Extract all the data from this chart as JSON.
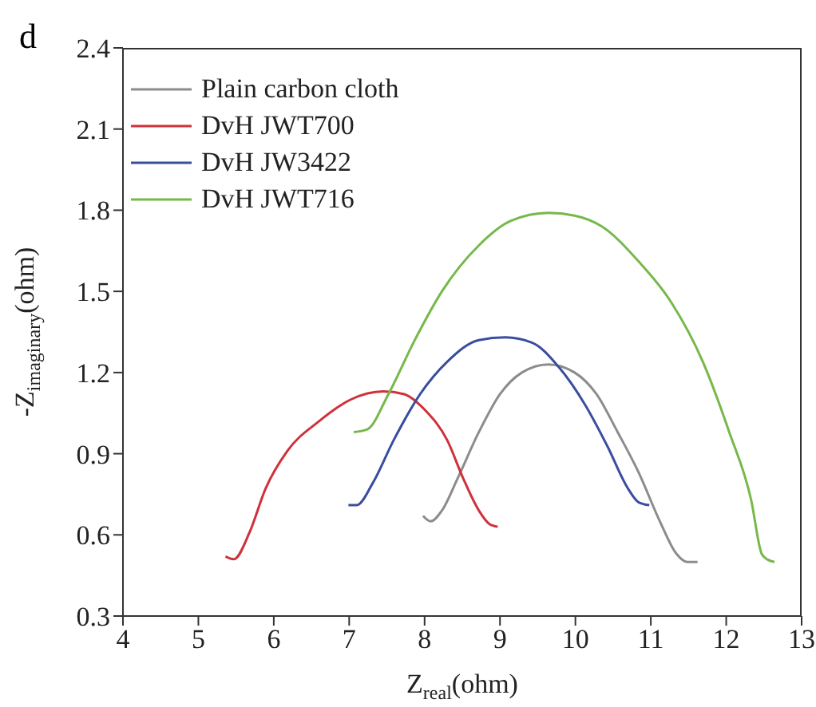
{
  "chart_data": {
    "type": "line",
    "annotations": [
      "d"
    ],
    "xlabel": "Z$_{real}$(ohm)",
    "ylabel": "-Z$_{imaginary}$(ohm)",
    "xlim": [
      4,
      13
    ],
    "xticks": [
      4,
      5,
      6,
      7,
      8,
      9,
      10,
      11,
      12,
      13
    ],
    "ylim": [
      0.3,
      2.4
    ],
    "yticks": [
      0.3,
      0.6,
      0.9,
      1.2,
      1.5,
      1.8,
      2.1,
      2.4
    ],
    "grid": false,
    "legend": "top left",
    "marker": "none",
    "line_style": "solid",
    "series": [
      {
        "name": "Plain carbon cloth",
        "color": "#8c8c8c",
        "x": [
          7.98,
          8.08,
          8.23,
          8.44,
          8.72,
          9.0,
          9.29,
          9.64,
          9.99,
          10.28,
          10.56,
          10.84,
          11.12,
          11.34,
          11.48,
          11.62
        ],
        "values": [
          0.67,
          0.65,
          0.69,
          0.81,
          0.98,
          1.12,
          1.2,
          1.23,
          1.2,
          1.12,
          0.98,
          0.83,
          0.65,
          0.53,
          0.5,
          0.5
        ]
      },
      {
        "name": "DvH JWT700",
        "color": "#d0313b",
        "x": [
          5.36,
          5.47,
          5.68,
          5.89,
          6.18,
          6.6,
          7.02,
          7.45,
          7.73,
          8.01,
          8.3,
          8.51,
          8.72,
          8.86,
          8.97
        ],
        "values": [
          0.52,
          0.51,
          0.61,
          0.77,
          0.91,
          1.02,
          1.1,
          1.13,
          1.12,
          1.06,
          0.95,
          0.81,
          0.69,
          0.64,
          0.63
        ]
      },
      {
        "name": "DvH JW3422",
        "color": "#3a4ea0",
        "x": [
          6.99,
          7.1,
          7.31,
          7.59,
          7.94,
          8.3,
          8.72,
          9.07,
          9.43,
          9.78,
          10.13,
          10.42,
          10.7,
          10.84,
          10.98
        ],
        "values": [
          0.71,
          0.71,
          0.79,
          0.95,
          1.12,
          1.24,
          1.32,
          1.33,
          1.31,
          1.22,
          1.08,
          0.93,
          0.77,
          0.72,
          0.71
        ]
      },
      {
        "name": "DvH JWT716",
        "color": "#77b84a",
        "x": [
          7.06,
          7.24,
          7.52,
          7.87,
          8.23,
          8.72,
          9.14,
          9.64,
          9.99,
          10.35,
          10.84,
          11.27,
          11.69,
          12.04,
          12.33,
          12.47,
          12.54,
          12.64
        ],
        "values": [
          0.98,
          0.99,
          1.12,
          1.32,
          1.5,
          1.67,
          1.76,
          1.79,
          1.78,
          1.74,
          1.61,
          1.46,
          1.24,
          0.98,
          0.73,
          0.53,
          0.51,
          0.5
        ]
      }
    ]
  }
}
